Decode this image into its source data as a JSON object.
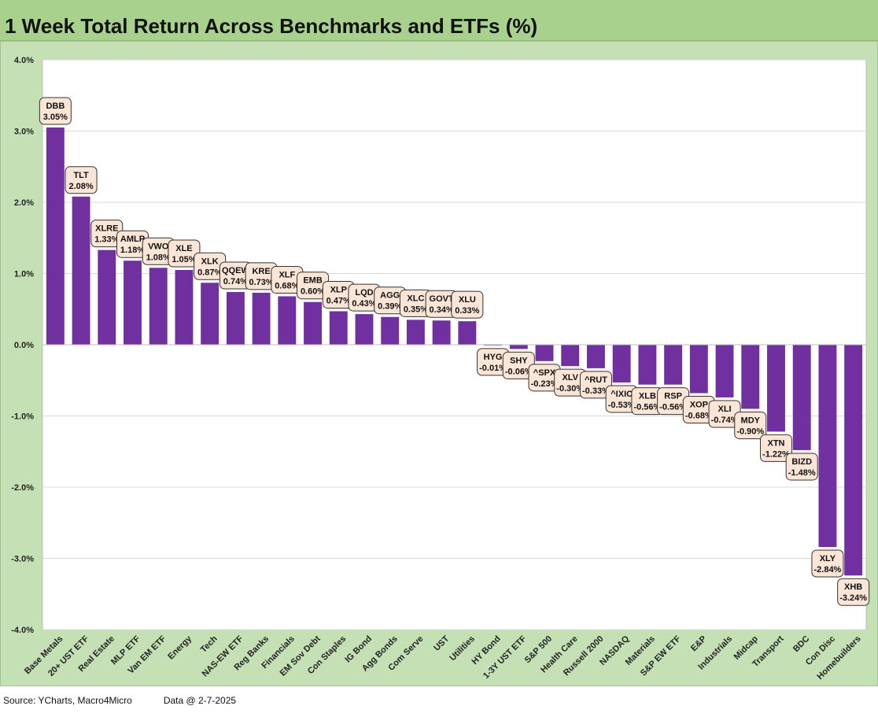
{
  "header": {
    "title": "1 Week Total Return Across Benchmarks and ETFs (%)"
  },
  "footer": {
    "source": "Source: YCharts, Macro4Micro",
    "date": "Data @ 2-7-2025"
  },
  "colors": {
    "bar": "#7030a0",
    "background": "#c5e0b4",
    "plot_area": "#ffffff",
    "label_box": "#fbe5d6",
    "title_bar": "#a9d18e"
  },
  "chart_data": {
    "type": "bar",
    "title": "1 Week Total Return Across Benchmarks and ETFs (%)",
    "xlabel": "",
    "ylabel": "",
    "ylim": [
      -4.0,
      4.0
    ],
    "yticks": [
      "4.0%",
      "3.0%",
      "2.0%",
      "1.0%",
      "0.0%",
      "-1.0%",
      "-2.0%",
      "-3.0%",
      "-4.0%"
    ],
    "grid": true,
    "categories": [
      "Base Metals",
      "20+ UST ETF",
      "Real Estate",
      "MLP ETF",
      "Van EM ETF",
      "Energy",
      "Tech",
      "NAS-EW ETF",
      "Reg Banks",
      "Financials",
      "EM Sov Debt",
      "Con Staples",
      "IG Bond",
      "Agg Bonds",
      "Com Serve",
      "UST",
      "Utilities",
      "HY Bond",
      "1-3Y UST ETF",
      "S&P 500",
      "Health Care",
      "Russell 2000",
      "NASDAQ",
      "Materials",
      "S&P EW ETF",
      "E&P",
      "Industrials",
      "Midcap",
      "Transport",
      "BDC",
      "Con Disc",
      "Homebuilders"
    ],
    "tickers": [
      "DBB",
      "TLT",
      "XLRE",
      "AMLP",
      "VWO",
      "XLE",
      "XLK",
      "QQEW",
      "KRE",
      "XLF",
      "EMB",
      "XLP",
      "LQD",
      "AGG",
      "XLC",
      "GOVT",
      "XLU",
      "HYG",
      "SHY",
      "^SPX",
      "XLV",
      "^RUT",
      "^IXIC",
      "XLB",
      "RSP",
      "XOP",
      "XLI",
      "MDY",
      "XTN",
      "BIZD",
      "XLY",
      "XHB"
    ],
    "value_labels": [
      "3.05%",
      "2.08%",
      "1.33%",
      "1.18%",
      "1.08%",
      "1.05%",
      "0.87%",
      "0.74%",
      "0.73%",
      "0.68%",
      "0.60%",
      "0.47%",
      "0.43%",
      "0.39%",
      "0.35%",
      "0.34%",
      "0.33%",
      "-0.01%",
      "-0.06%",
      "-0.23%",
      "-0.30%",
      "-0.33%",
      "-0.53%",
      "-0.56%",
      "-0.56%",
      "-0.68%",
      "-0.74%",
      "-0.90%",
      "-1.22%",
      "-1.48%",
      "-2.84%",
      "-3.24%"
    ],
    "values": [
      3.05,
      2.08,
      1.33,
      1.18,
      1.08,
      1.05,
      0.87,
      0.74,
      0.73,
      0.68,
      0.6,
      0.47,
      0.43,
      0.39,
      0.35,
      0.34,
      0.33,
      -0.01,
      -0.06,
      -0.23,
      -0.3,
      -0.33,
      -0.53,
      -0.56,
      -0.56,
      -0.68,
      -0.74,
      -0.9,
      -1.22,
      -1.48,
      -2.84,
      -3.24
    ]
  }
}
